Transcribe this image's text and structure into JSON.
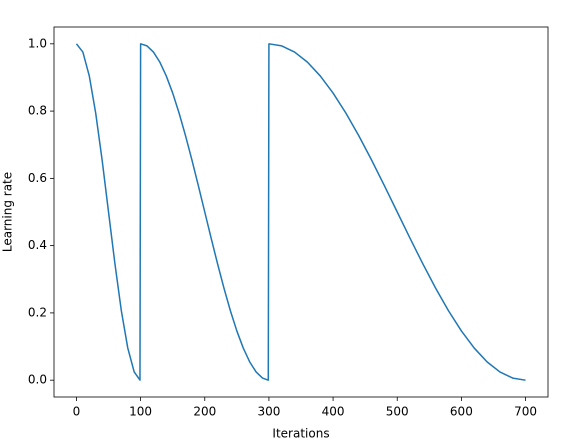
{
  "chart_data": {
    "type": "line",
    "xlabel": "Iterations",
    "ylabel": "Learning rate",
    "x": [
      0,
      10,
      20,
      30,
      40,
      50,
      60,
      70,
      80,
      90,
      99,
      100,
      110,
      120,
      130,
      140,
      150,
      160,
      170,
      180,
      190,
      200,
      210,
      220,
      230,
      240,
      250,
      260,
      270,
      280,
      290,
      299,
      300,
      320,
      340,
      360,
      380,
      400,
      420,
      440,
      460,
      480,
      500,
      520,
      540,
      560,
      580,
      600,
      620,
      640,
      660,
      680,
      700
    ],
    "values": [
      1.0,
      0.9755,
      0.9045,
      0.7939,
      0.6545,
      0.5,
      0.3455,
      0.2061,
      0.0955,
      0.0245,
      0.0002,
      1.0,
      0.9938,
      0.9755,
      0.9455,
      0.9045,
      0.8536,
      0.7939,
      0.727,
      0.6545,
      0.5782,
      0.5,
      0.4218,
      0.3455,
      0.273,
      0.2061,
      0.1464,
      0.0955,
      0.0545,
      0.0245,
      0.0062,
      0.0001,
      1.0,
      0.9938,
      0.9755,
      0.9455,
      0.9045,
      0.8536,
      0.7939,
      0.727,
      0.6545,
      0.5782,
      0.5,
      0.4218,
      0.3455,
      0.273,
      0.2061,
      0.1464,
      0.0955,
      0.0545,
      0.0245,
      0.0062,
      0.0
    ],
    "color": "#1f77b4",
    "xlim": [
      -35,
      735
    ],
    "xticks": [
      0,
      100,
      200,
      300,
      400,
      500,
      600,
      700
    ],
    "ylim": [
      -0.05,
      1.05
    ],
    "yticks": [
      {
        "value": 0,
        "label": "0.0"
      },
      {
        "value": 0.2,
        "label": "0.2"
      },
      {
        "value": 0.4,
        "label": "0.4"
      },
      {
        "value": 0.6,
        "label": "0.6"
      },
      {
        "value": 0.8,
        "label": "0.8"
      },
      {
        "value": 1,
        "label": "1.0"
      }
    ],
    "grid": false
  }
}
